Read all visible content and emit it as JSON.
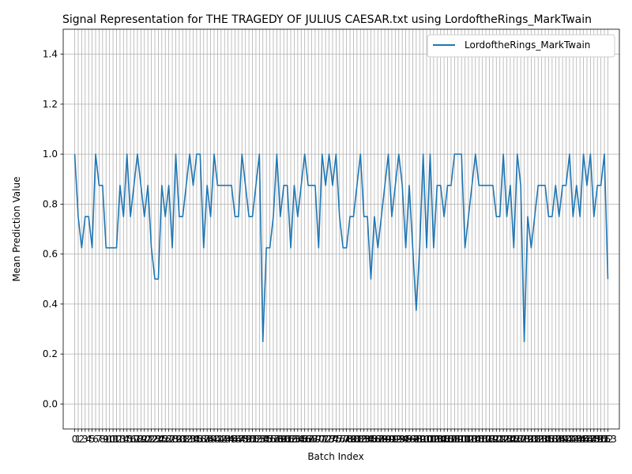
{
  "chart_data": {
    "type": "line",
    "title": "Signal Representation for THE TRAGEDY OF JULIUS CAESAR.txt using LordoftheRings_MarkTwain",
    "xlabel": "Batch Index",
    "ylabel": "Mean Prediction Value",
    "ylim": [
      -0.1,
      1.5
    ],
    "yticks": [
      0.0,
      0.2,
      0.4,
      0.6,
      0.8,
      1.0,
      1.2,
      1.4
    ],
    "xlim": [
      -3.3,
      156.3
    ],
    "grid": true,
    "legend_position": "top-right",
    "line_color": "#1f77b4",
    "series": [
      {
        "name": "LordoftheRings_MarkTwain",
        "values": [
          1.0,
          0.75,
          0.625,
          0.75,
          0.75,
          0.625,
          1.0,
          0.875,
          0.875,
          0.625,
          0.625,
          0.625,
          0.625,
          0.875,
          0.75,
          1.0,
          0.75,
          0.875,
          1.0,
          0.875,
          0.75,
          0.875,
          0.625,
          0.5,
          0.5,
          0.875,
          0.75,
          0.875,
          0.625,
          1.0,
          0.75,
          0.75,
          0.875,
          1.0,
          0.875,
          1.0,
          1.0,
          0.625,
          0.875,
          0.75,
          1.0,
          0.875,
          0.875,
          0.875,
          0.875,
          0.875,
          0.75,
          0.75,
          1.0,
          0.875,
          0.75,
          0.75,
          0.875,
          1.0,
          0.25,
          0.625,
          0.625,
          0.75,
          1.0,
          0.75,
          0.875,
          0.875,
          0.625,
          0.875,
          0.75,
          0.875,
          1.0,
          0.875,
          0.875,
          0.875,
          0.625,
          1.0,
          0.875,
          1.0,
          0.875,
          1.0,
          0.75,
          0.625,
          0.625,
          0.75,
          0.75,
          0.875,
          1.0,
          0.75,
          0.75,
          0.5,
          0.75,
          0.625,
          0.75,
          0.875,
          1.0,
          0.75,
          0.875,
          1.0,
          0.875,
          0.625,
          0.875,
          0.625,
          0.375,
          0.625,
          1.0,
          0.625,
          1.0,
          0.625,
          0.875,
          0.875,
          0.75,
          0.875,
          0.875,
          1.0,
          1.0,
          1.0,
          0.625,
          0.75,
          0.875,
          1.0,
          0.875,
          0.875,
          0.875,
          0.875,
          0.875,
          0.75,
          0.75,
          1.0,
          0.75,
          0.875,
          0.625,
          1.0,
          0.875,
          0.25,
          0.75,
          0.625,
          0.75,
          0.875,
          0.875,
          0.875,
          0.75,
          0.75,
          0.875,
          0.75,
          0.875,
          0.875,
          1.0,
          0.75,
          0.875,
          0.75,
          1.0,
          0.875,
          1.0,
          0.75,
          0.875,
          0.875,
          1.0,
          0.5
        ]
      }
    ]
  }
}
